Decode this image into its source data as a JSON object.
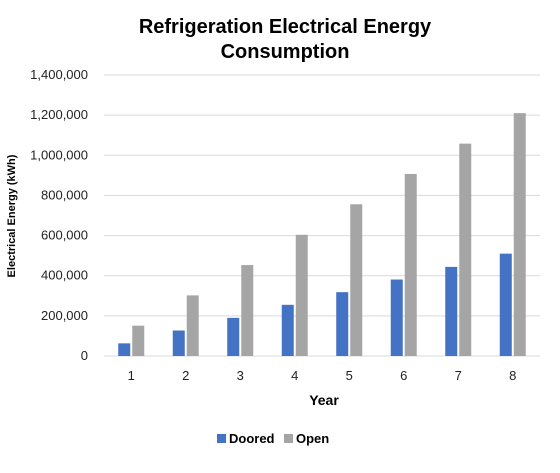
{
  "chart_data": {
    "type": "bar",
    "title_lines": [
      "Refrigeration Electrical Energy",
      "Consumption"
    ],
    "xlabel": "Year",
    "ylabel": "Electrical Energy (kWh)",
    "categories": [
      "1",
      "2",
      "3",
      "4",
      "5",
      "6",
      "7",
      "8"
    ],
    "ylim": [
      0,
      1400000
    ],
    "yticks": [
      0,
      200000,
      400000,
      600000,
      800000,
      1000000,
      1200000,
      1400000
    ],
    "ytick_labels": [
      "0",
      "200,000",
      "400,000",
      "600,000",
      "800,000",
      "1,000,000",
      "1,200,000",
      "1,400,000"
    ],
    "grid": true,
    "legend_position": "bottom",
    "series": [
      {
        "name": "Doored",
        "color": "#4472C4",
        "values": [
          63000,
          127000,
          190000,
          255000,
          318000,
          381000,
          444000,
          510000
        ]
      },
      {
        "name": "Open",
        "color": "#A5A5A5",
        "values": [
          151000,
          302000,
          453000,
          604000,
          756000,
          907000,
          1058000,
          1210000
        ]
      }
    ]
  }
}
